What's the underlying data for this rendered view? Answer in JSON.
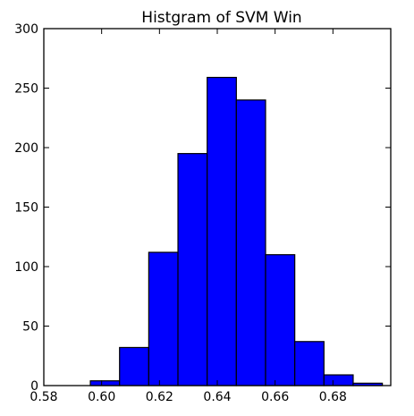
{
  "chart_data": {
    "type": "bar",
    "title": "Histgram of SVM Win",
    "xlabel": "",
    "ylabel": "",
    "xlim": [
      0.58,
      0.7
    ],
    "ylim": [
      0,
      300
    ],
    "xticks": [
      0.58,
      0.6,
      0.62,
      0.64,
      0.66,
      0.68
    ],
    "xtick_labels": [
      "0.58",
      "0.60",
      "0.62",
      "0.64",
      "0.66",
      "0.68"
    ],
    "yticks": [
      0,
      50,
      100,
      150,
      200,
      250,
      300
    ],
    "ytick_labels": [
      "0",
      "50",
      "100",
      "150",
      "200",
      "250",
      "300"
    ],
    "bar_color": "#0000ff",
    "edge_color": "#000000",
    "grid": false,
    "bins": [
      {
        "x0": 0.5961,
        "x1": 0.6062,
        "count": 4
      },
      {
        "x0": 0.6062,
        "x1": 0.6163,
        "count": 32
      },
      {
        "x0": 0.6163,
        "x1": 0.6264,
        "count": 112
      },
      {
        "x0": 0.6264,
        "x1": 0.6365,
        "count": 195
      },
      {
        "x0": 0.6365,
        "x1": 0.6466,
        "count": 259
      },
      {
        "x0": 0.6466,
        "x1": 0.6567,
        "count": 240
      },
      {
        "x0": 0.6567,
        "x1": 0.6668,
        "count": 110
      },
      {
        "x0": 0.6668,
        "x1": 0.6769,
        "count": 37
      },
      {
        "x0": 0.6769,
        "x1": 0.687,
        "count": 9
      },
      {
        "x0": 0.687,
        "x1": 0.6971,
        "count": 2
      }
    ]
  }
}
